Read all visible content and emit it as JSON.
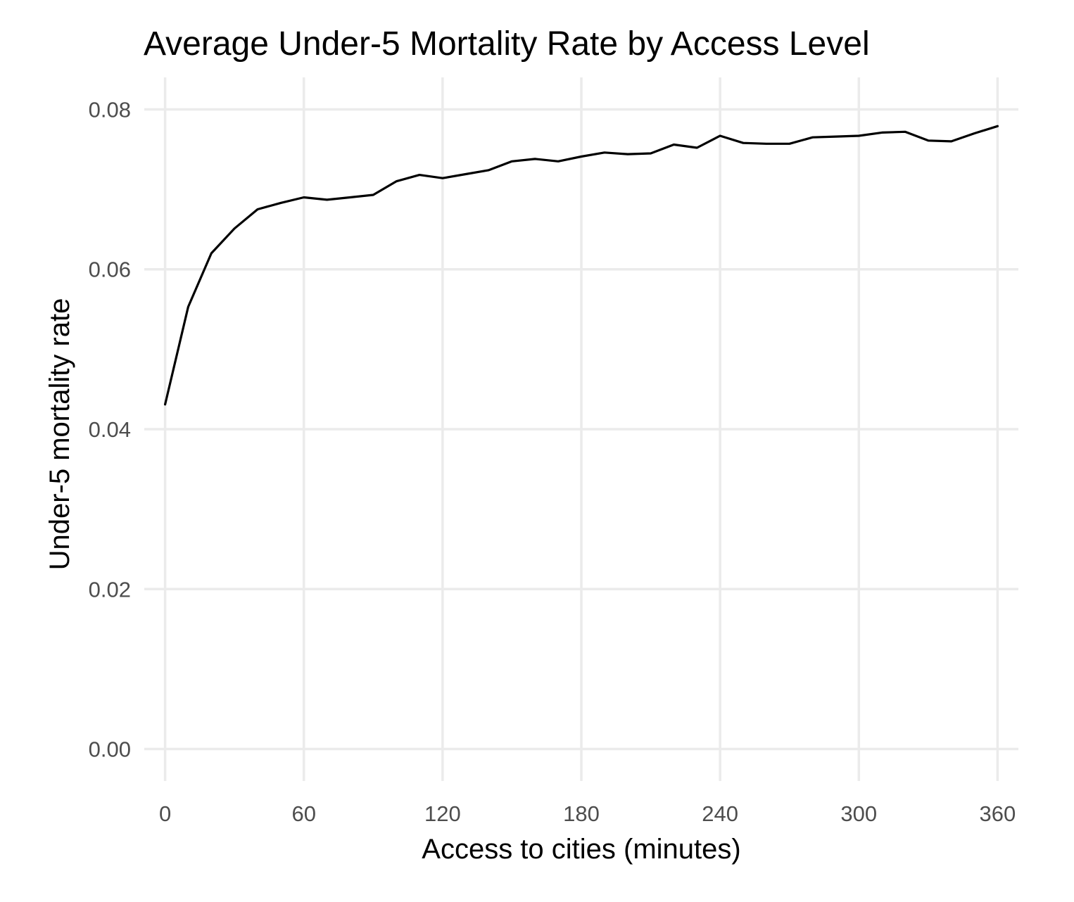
{
  "chart_data": {
    "type": "line",
    "title": "Average Under-5 Mortality Rate by Access Level",
    "xlabel": "Access to cities (minutes)",
    "ylabel": "Under-5 mortality rate",
    "xlim": [
      -9,
      369
    ],
    "ylim": [
      -0.004,
      0.084
    ],
    "x_ticks": [
      0,
      60,
      120,
      180,
      240,
      300,
      360
    ],
    "x_tick_labels": [
      "0",
      "60",
      "120",
      "180",
      "240",
      "300",
      "360"
    ],
    "y_ticks": [
      0,
      0.02,
      0.04,
      0.06,
      0.08
    ],
    "y_tick_labels": [
      "0.00",
      "0.02",
      "0.04",
      "0.06",
      "0.08"
    ],
    "grid": true,
    "legend": "none",
    "line_color": "#000000",
    "series": [
      {
        "x": [
          0,
          10,
          20,
          30,
          40,
          50,
          60,
          70,
          80,
          90,
          100,
          110,
          120,
          130,
          140,
          150,
          160,
          170,
          180,
          190,
          200,
          210,
          220,
          230,
          240,
          250,
          260,
          270,
          280,
          290,
          300,
          310,
          320,
          330,
          340,
          350,
          360
        ],
        "values": [
          0.0431,
          0.0553,
          0.062,
          0.0651,
          0.0675,
          0.0683,
          0.069,
          0.0687,
          0.069,
          0.0693,
          0.071,
          0.0718,
          0.0714,
          0.0719,
          0.0724,
          0.0735,
          0.0738,
          0.0735,
          0.0741,
          0.0746,
          0.0744,
          0.0745,
          0.0756,
          0.0752,
          0.0767,
          0.0758,
          0.0757,
          0.0757,
          0.0765,
          0.0766,
          0.0767,
          0.0771,
          0.0772,
          0.0761,
          0.076,
          0.077,
          0.0779
        ]
      }
    ]
  }
}
